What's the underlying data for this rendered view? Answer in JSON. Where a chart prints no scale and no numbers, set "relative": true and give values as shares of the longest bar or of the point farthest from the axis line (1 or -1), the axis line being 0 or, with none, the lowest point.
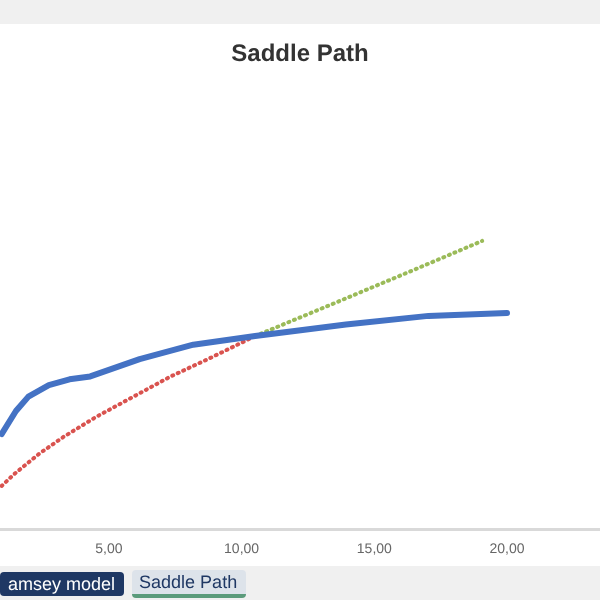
{
  "chart_data": {
    "type": "line",
    "title": "Saddle Path",
    "relative": true,
    "marker": "none",
    "xlim": [
      0.9,
      23.5
    ],
    "xticks": [
      {
        "value": 5,
        "label": "5,00"
      },
      {
        "value": 10,
        "label": "10,00"
      },
      {
        "value": 15,
        "label": "15,00"
      },
      {
        "value": 20,
        "label": "20,00"
      }
    ],
    "series": [
      {
        "color": "#4472c4",
        "line_style": "solid",
        "x": [
          0.96,
          1.5,
          1.97,
          2.74,
          3.52,
          4.3,
          6.16,
          8.18,
          10.51,
          13.93,
          17.04,
          20.0
        ],
        "values": [
          0.33,
          0.41,
          0.46,
          0.5,
          0.52,
          0.53,
          0.59,
          0.64,
          0.67,
          0.71,
          0.74,
          0.75
        ]
      },
      {
        "color": "#d9534f",
        "line_style": "dotted",
        "x": [
          0.96,
          1.42,
          2.35,
          3.29,
          4.53,
          5.93,
          7.33,
          8.73,
          10.51
        ],
        "values": [
          0.15,
          0.19,
          0.26,
          0.32,
          0.39,
          0.46,
          0.53,
          0.59,
          0.67
        ]
      },
      {
        "color": "#9bbb59",
        "line_style": "dotted",
        "x": [
          10.51,
          13.39,
          16.5,
          19.06
        ],
        "values": [
          0.67,
          0.78,
          0.9,
          1.0
        ]
      }
    ],
    "annotations": [
      "amsey model",
      "Saddle Path"
    ]
  }
}
